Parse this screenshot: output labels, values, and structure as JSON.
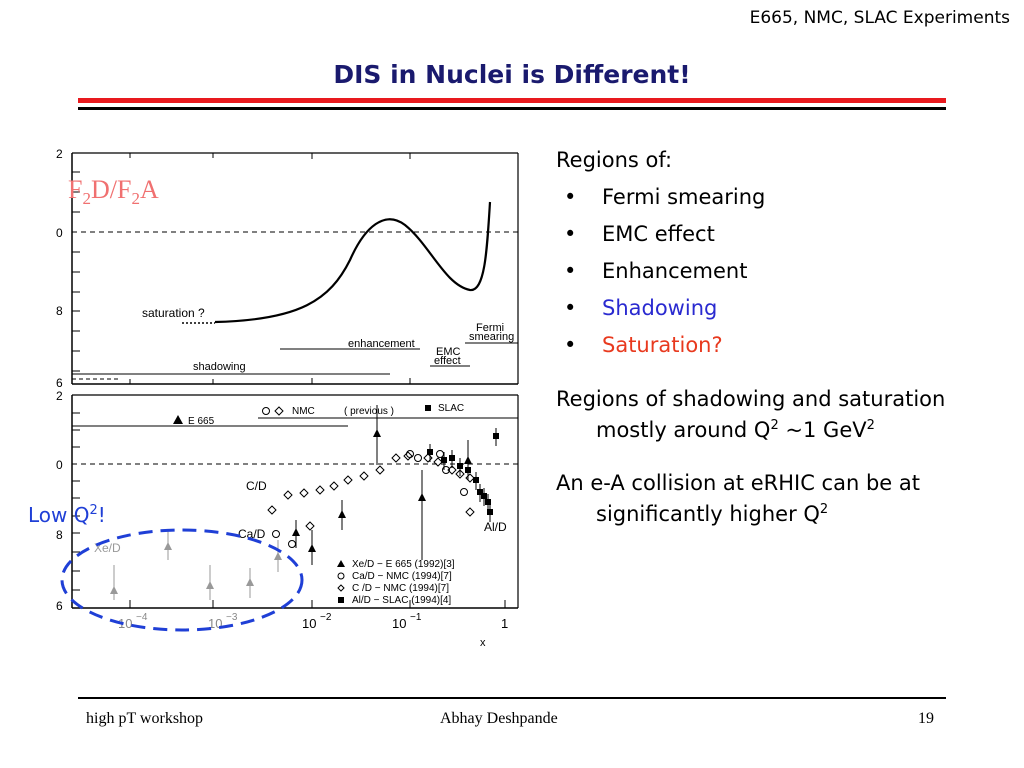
{
  "header": {
    "experiments": "E665, NMC, SLAC Experiments"
  },
  "title": "DIS in Nuclei is Different!",
  "figure": {
    "overlay_label_base": "F",
    "overlay_label_sub1": "2",
    "overlay_label_mid": "D/F",
    "overlay_label_sub2": "2",
    "overlay_label_end": "A",
    "upper_panel": {
      "y_ticks": [
        "2",
        "0",
        "8",
        "6"
      ],
      "labels": {
        "saturation": "saturation ?",
        "enhancement": "enhancement",
        "shadowing": "shadowing",
        "fermi1": "Fermi",
        "fermi2": "smearing",
        "emc1": "EMC",
        "emc2": "effect"
      }
    },
    "lower_panel": {
      "y_ticks": [
        "2",
        "0",
        "8",
        "6"
      ],
      "x_ticks": [
        "10",
        "10",
        "10",
        "10",
        "1"
      ],
      "x_exp": [
        "−4",
        "−3",
        "−2",
        "−1"
      ],
      "x_label": "x",
      "legend_top": {
        "e665": "E 665",
        "nmc": "NMC",
        "nmc_paren": "( previous )",
        "slac": "SLAC"
      },
      "nucleus_labels": {
        "cd": "C/D",
        "cad": "Ca/D",
        "xed": "Xe/D",
        "ald": "Al/D"
      },
      "legend_bottom": [
        "Xe/D − E 665 (1992)[3]",
        "Ca/D − NMC  (1994)[7]",
        "C /D − NMC  (1994)[7]",
        "Al/D  − SLAC  (1994)[4]"
      ]
    },
    "lowq_label": "Low Q",
    "lowq_sup": "2",
    "lowq_end": "!"
  },
  "right_panel": {
    "heading": "Regions of:",
    "bullet_glyph": "•",
    "bullets": [
      "Fermi smearing",
      "EMC effect",
      "Enhancement",
      "Shadowing",
      "Saturation?"
    ],
    "bullet_colors": [
      "#000000",
      "#000000",
      "#000000",
      "#2a2ad0",
      "#e8391e"
    ],
    "para1_a": "Regions of shadowing and saturation mostly around Q",
    "para1_sup": "2",
    "para1_b": " ~1 GeV",
    "para1_sup2": "2",
    "para2_a": "An e-A collision at eRHIC can be at significantly higher Q",
    "para2_sup": "2"
  },
  "footer": {
    "left": "high pT workshop",
    "middle": "Abhay Deshpande",
    "right": "19"
  }
}
